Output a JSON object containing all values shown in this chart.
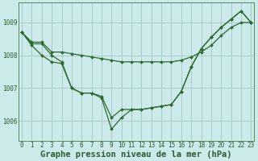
{
  "title": "Graphe pression niveau de la mer (hPa)",
  "hours": [
    0,
    1,
    2,
    3,
    4,
    5,
    6,
    7,
    8,
    9,
    10,
    11,
    12,
    13,
    14,
    15,
    16,
    17,
    18,
    19,
    20,
    21,
    22,
    23
  ],
  "line_flat": [
    1008.7,
    1008.4,
    1008.4,
    1008.1,
    1008.1,
    1008.05,
    1008.0,
    1007.95,
    1007.9,
    1007.85,
    1007.8,
    1007.8,
    1007.8,
    1007.8,
    1007.8,
    1007.8,
    1007.85,
    1007.95,
    1008.1,
    1008.3,
    1008.6,
    1008.85,
    1009.0,
    1009.0
  ],
  "line_mid": [
    1008.7,
    1008.35,
    1008.35,
    1008.0,
    1007.8,
    1007.0,
    1006.85,
    1006.85,
    1006.75,
    1006.1,
    1006.35,
    1006.35,
    1006.35,
    1006.4,
    1006.45,
    1006.5,
    1006.9,
    1007.65,
    1008.2,
    1008.55,
    1008.85,
    1009.1,
    1009.35,
    1009.0
  ],
  "line_deep": [
    1008.7,
    1008.3,
    1008.0,
    1007.8,
    1007.75,
    1007.0,
    1006.85,
    1006.85,
    1006.7,
    1005.75,
    1006.1,
    1006.35,
    1006.35,
    1006.4,
    1006.45,
    1006.5,
    1006.9,
    1007.65,
    1008.2,
    1008.55,
    1008.85,
    1009.1,
    1009.35,
    1009.0
  ],
  "ylim": [
    1005.4,
    1009.6
  ],
  "yticks": [
    1006,
    1007,
    1008,
    1009
  ],
  "bg_color": "#cceaea",
  "grid_color": "#aacccc",
  "line_color": "#2d6a2d",
  "marker": "D",
  "marker_size": 2.0,
  "line_width": 0.9,
  "title_fontsize": 7.5,
  "tick_fontsize": 5.5,
  "title_color": "#2d5a2d",
  "tick_color": "#2d5a2d",
  "spine_color": "#5a8a5a"
}
